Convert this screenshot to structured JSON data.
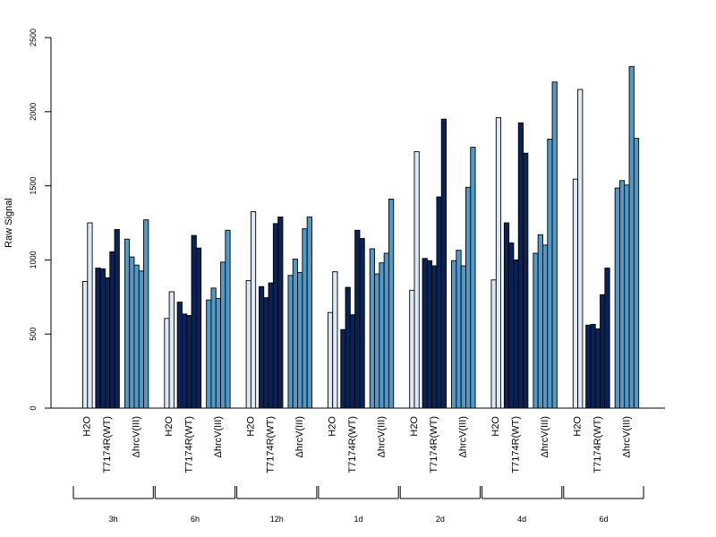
{
  "chart_data": {
    "type": "bar",
    "ylabel": "Raw Signal",
    "ylim": [
      0,
      2500
    ],
    "yticks": [
      0,
      500,
      1000,
      1500,
      2000,
      2500
    ],
    "group_labels": [
      "H2O",
      "T7174R(WT)",
      "ΔhrcV(III)"
    ],
    "colors": {
      "H2O": "#dee9f7",
      "T7174R(WT)": "#0a2356",
      "ΔhrcV(III)": "#5399c8"
    },
    "timepoints": [
      {
        "label": "3h",
        "H2O": [
          855,
          1250
        ],
        "T7174R(WT)": [
          945,
          940,
          880,
          1055,
          1205
        ],
        "ΔhrcV(III)": [
          1140,
          1020,
          965,
          925,
          1270
        ]
      },
      {
        "label": "6h",
        "H2O": [
          605,
          785
        ],
        "T7174R(WT)": [
          715,
          635,
          625,
          1165,
          1080
        ],
        "ΔhrcV(III)": [
          730,
          810,
          740,
          985,
          1200
        ]
      },
      {
        "label": "12h",
        "H2O": [
          860,
          1325
        ],
        "T7174R(WT)": [
          820,
          745,
          845,
          1245,
          1290
        ],
        "ΔhrcV(III)": [
          895,
          1005,
          915,
          1210,
          1290
        ]
      },
      {
        "label": "1d",
        "H2O": [
          645,
          920
        ],
        "T7174R(WT)": [
          530,
          815,
          630,
          1200,
          1145
        ],
        "ΔhrcV(III)": [
          1075,
          905,
          980,
          1045,
          1410
        ]
      },
      {
        "label": "2d",
        "H2O": [
          795,
          1730
        ],
        "T7174R(WT)": [
          1010,
          995,
          960,
          1425,
          1950
        ],
        "ΔhrcV(III)": [
          995,
          1065,
          960,
          1490,
          1760
        ]
      },
      {
        "label": "4d",
        "H2O": [
          865,
          1960
        ],
        "T7174R(WT)": [
          1250,
          1115,
          1000,
          1925,
          1720
        ],
        "ΔhrcV(III)": [
          1045,
          1170,
          1100,
          1815,
          2200
        ]
      },
      {
        "label": "6d",
        "H2O": [
          1545,
          2150
        ],
        "T7174R(WT)": [
          560,
          565,
          535,
          765,
          945
        ],
        "ΔhrcV(III)": [
          1485,
          1535,
          1505,
          2305,
          1820
        ]
      }
    ]
  }
}
